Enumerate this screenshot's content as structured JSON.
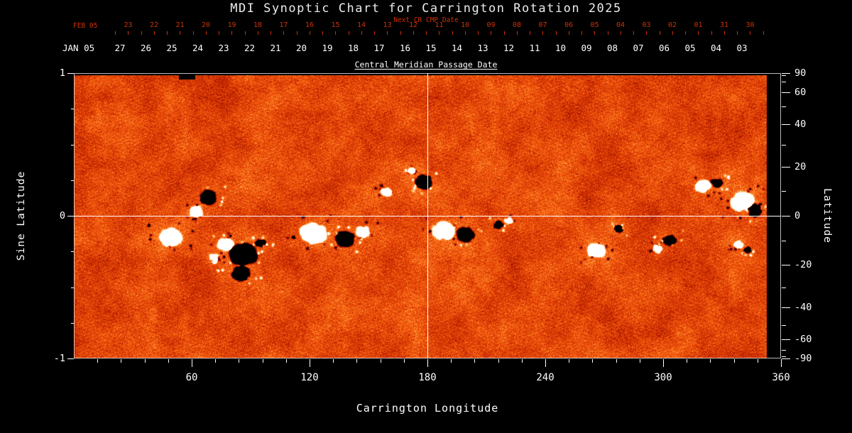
{
  "title": "MDI Synoptic Chart for Carrington Rotation 2025",
  "colors": {
    "background": "#000000",
    "axis_red": "#cd3208",
    "axis_white": "#ffffff",
    "title_text": "#ececec",
    "crosshair": "#ffffff"
  },
  "top_axis": {
    "label": "Next CR CMP Date",
    "month_label": "FEB 05",
    "dates": [
      "23",
      "22",
      "21",
      "20",
      "19",
      "18",
      "17",
      "16",
      "15",
      "14",
      "13",
      "12",
      "11",
      "10",
      "09",
      "08",
      "07",
      "06",
      "05",
      "04",
      "03",
      "02",
      "01",
      "31",
      "30"
    ]
  },
  "cmp_axis": {
    "label": "Central Meridian Passage Date",
    "month_label": "JAN 05",
    "dates": [
      "27",
      "26",
      "25",
      "24",
      "23",
      "22",
      "21",
      "20",
      "19",
      "18",
      "17",
      "16",
      "15",
      "14",
      "13",
      "12",
      "11",
      "10",
      "09",
      "08",
      "07",
      "06",
      "05",
      "04",
      "03"
    ]
  },
  "left_axis": {
    "label": "Sine Latitude",
    "ticks": [
      "1",
      "0",
      "-1"
    ]
  },
  "right_axis": {
    "label": "Latitude",
    "ticks": [
      "90",
      "60",
      "40",
      "20",
      "0",
      "-20",
      "-40",
      "-60",
      "-90"
    ]
  },
  "bottom_axis": {
    "label": "Carrington Longitude",
    "ticks": [
      "60",
      "120",
      "180",
      "240",
      "300",
      "360"
    ]
  },
  "chart_data": {
    "type": "heatmap",
    "title": "MDI Synoptic Chart for Carrington Rotation 2025",
    "xlabel": "Carrington Longitude",
    "ylabel_left": "Sine Latitude",
    "ylabel_right": "Latitude",
    "xlim": [
      0,
      360
    ],
    "ylim_sine_latitude": [
      -1,
      1
    ],
    "x_ticks": [
      60,
      120,
      180,
      240,
      300,
      360
    ],
    "left_ticks_sine_latitude": [
      1,
      0,
      -1
    ],
    "right_ticks_latitude": [
      90,
      60,
      40,
      20,
      0,
      -20,
      -40,
      -60,
      -90
    ],
    "colormap": "black-red-orange-white (line-of-sight magnetic flux)",
    "grid": {
      "crosshair_longitude": 180,
      "crosshair_sine_latitude": 0
    },
    "legend": "none",
    "data_gaps": {
      "top_edge_black_strip": true,
      "right_edge_black_strip_longitude": [
        353,
        360
      ]
    },
    "active_regions": [
      {
        "longitude": 68,
        "sine_latitude": 0.13,
        "polarity": "negative",
        "size": 9
      },
      {
        "longitude": 62,
        "sine_latitude": 0.03,
        "polarity": "positive",
        "size": 7
      },
      {
        "longitude": 49,
        "sine_latitude": -0.15,
        "polarity": "positive",
        "size": 11
      },
      {
        "longitude": 71,
        "sine_latitude": -0.3,
        "polarity": "positive",
        "size": 6
      },
      {
        "longitude": 77,
        "sine_latitude": -0.2,
        "polarity": "positive",
        "size": 8
      },
      {
        "longitude": 86,
        "sine_latitude": -0.27,
        "polarity": "negative",
        "size": 14
      },
      {
        "longitude": 85,
        "sine_latitude": -0.4,
        "polarity": "negative",
        "size": 10
      },
      {
        "longitude": 95,
        "sine_latitude": -0.19,
        "polarity": "negative",
        "size": 6
      },
      {
        "longitude": 122,
        "sine_latitude": -0.12,
        "polarity": "positive",
        "size": 13
      },
      {
        "longitude": 138,
        "sine_latitude": -0.16,
        "polarity": "negative",
        "size": 10
      },
      {
        "longitude": 147,
        "sine_latitude": -0.11,
        "polarity": "positive",
        "size": 7
      },
      {
        "longitude": 159,
        "sine_latitude": 0.17,
        "polarity": "positive",
        "size": 6
      },
      {
        "longitude": 172,
        "sine_latitude": 0.32,
        "polarity": "positive",
        "size": 4
      },
      {
        "longitude": 178,
        "sine_latitude": 0.24,
        "polarity": "negative",
        "size": 9
      },
      {
        "longitude": 188,
        "sine_latitude": -0.1,
        "polarity": "positive",
        "size": 11
      },
      {
        "longitude": 199,
        "sine_latitude": -0.13,
        "polarity": "negative",
        "size": 9
      },
      {
        "longitude": 216,
        "sine_latitude": -0.06,
        "polarity": "negative",
        "size": 5
      },
      {
        "longitude": 221,
        "sine_latitude": -0.03,
        "polarity": "positive",
        "size": 4
      },
      {
        "longitude": 266,
        "sine_latitude": -0.24,
        "polarity": "positive",
        "size": 9
      },
      {
        "longitude": 277,
        "sine_latitude": -0.09,
        "polarity": "negative",
        "size": 5
      },
      {
        "longitude": 297,
        "sine_latitude": -0.23,
        "polarity": "positive",
        "size": 5
      },
      {
        "longitude": 303,
        "sine_latitude": -0.17,
        "polarity": "negative",
        "size": 7
      },
      {
        "longitude": 320,
        "sine_latitude": 0.21,
        "polarity": "positive",
        "size": 8
      },
      {
        "longitude": 327,
        "sine_latitude": 0.23,
        "polarity": "negative",
        "size": 6
      },
      {
        "longitude": 340,
        "sine_latitude": 0.1,
        "polarity": "positive",
        "size": 12
      },
      {
        "longitude": 346,
        "sine_latitude": 0.04,
        "polarity": "negative",
        "size": 8
      },
      {
        "longitude": 338,
        "sine_latitude": -0.2,
        "polarity": "positive",
        "size": 5
      },
      {
        "longitude": 343,
        "sine_latitude": -0.24,
        "polarity": "negative",
        "size": 4
      }
    ]
  }
}
